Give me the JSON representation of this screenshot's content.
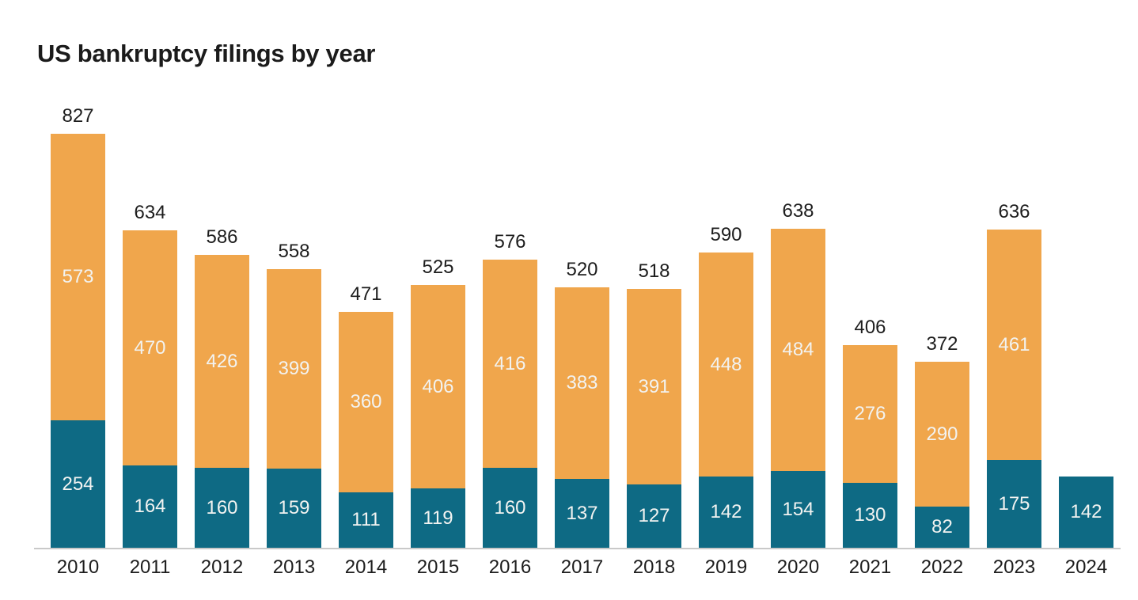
{
  "page": {
    "background": "#ffffff"
  },
  "chart_data": {
    "type": "stacked-bar",
    "title": "US bankruptcy filings by year",
    "categories": [
      "2010",
      "2011",
      "2012",
      "2013",
      "2014",
      "2015",
      "2016",
      "2017",
      "2018",
      "2019",
      "2020",
      "2021",
      "2022",
      "2023",
      "2024"
    ],
    "series": [
      {
        "name": "bottom-segment",
        "color": "#0e6a84",
        "values": [
          254,
          164,
          160,
          159,
          111,
          119,
          160,
          137,
          127,
          142,
          154,
          130,
          82,
          175,
          142
        ]
      },
      {
        "name": "top-segment",
        "color": "#f0a64c",
        "values": [
          573,
          470,
          426,
          399,
          360,
          406,
          416,
          383,
          391,
          448,
          484,
          276,
          290,
          461,
          null
        ]
      }
    ],
    "totals": [
      827,
      634,
      586,
      558,
      471,
      525,
      576,
      520,
      518,
      590,
      638,
      406,
      372,
      636,
      null
    ],
    "legend": "none",
    "grid": false,
    "ylim": [
      0,
      875
    ],
    "axis_line_color": "#c9c9c9",
    "tick_label_color": "#1d1d1d",
    "bar_value_label_color": "#f2f3f1"
  }
}
